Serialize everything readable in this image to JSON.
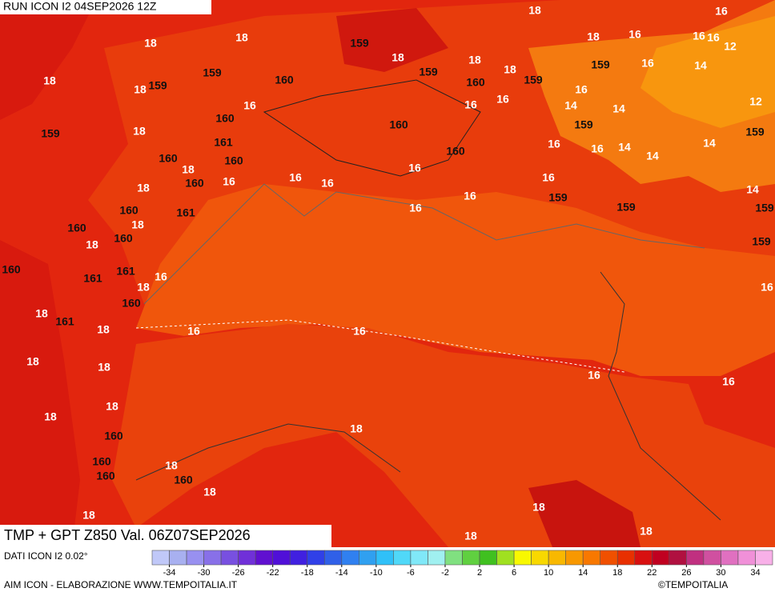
{
  "header": {
    "run": "RUN ICON I2 04SEP2026 12Z"
  },
  "map": {
    "labels": [
      "18",
      "18",
      "18",
      "18",
      "159",
      "159",
      "159",
      "18",
      "160",
      "16",
      "160",
      "161",
      "160",
      "18",
      "160",
      "160",
      "16",
      "18",
      "16",
      "16",
      "159",
      "18",
      "159",
      "18",
      "160",
      "18",
      "159",
      "16",
      "16",
      "160",
      "160",
      "16",
      "16",
      "16",
      "18",
      "18",
      "16",
      "159",
      "16",
      "16",
      "16",
      "16",
      "12",
      "14",
      "16",
      "14",
      "14",
      "12",
      "159",
      "16",
      "16",
      "14",
      "14",
      "14",
      "159",
      "16",
      "159",
      "159",
      "14",
      "159",
      "159",
      "16",
      "160",
      "161",
      "18",
      "160",
      "160",
      "18",
      "160",
      "161",
      "161",
      "16",
      "18",
      "160",
      "18",
      "161",
      "16",
      "16",
      "18",
      "18",
      "18",
      "16",
      "16",
      "18",
      "18",
      "18",
      "160",
      "160",
      "18",
      "160",
      "160",
      "18",
      "18",
      "18",
      "18",
      "18"
    ]
  },
  "footer": {
    "title": "TMP + GPT Z850 Val. 06Z07SEP2026",
    "source": "DATI ICON I2 0.02°",
    "credit": "AIM ICON - ELABORAZIONE WWW.TEMPOITALIA.IT",
    "copyright": "©TEMPOITALIA"
  },
  "colorbar": {
    "range": [
      -36,
      36
    ],
    "ticks": [
      -34,
      -30,
      -26,
      -22,
      -18,
      -14,
      -10,
      -6,
      -2,
      2,
      6,
      10,
      14,
      18,
      22,
      26,
      30,
      34
    ],
    "colors": [
      "#c0c8f8",
      "#a8b0f0",
      "#9890f0",
      "#8870e8",
      "#7850e0",
      "#7030d8",
      "#6010d0",
      "#5010d8",
      "#4020e0",
      "#3040e8",
      "#3060e8",
      "#3080f0",
      "#30a0f0",
      "#30c0f8",
      "#50d8f8",
      "#80e8f8",
      "#a0f0f0",
      "#80e080",
      "#60d040",
      "#40c020",
      "#a0e020",
      "#f8f800",
      "#f8d800",
      "#f8b800",
      "#f89800",
      "#f87800",
      "#f05000",
      "#e83000",
      "#d81010",
      "#c00020",
      "#b01040",
      "#c03080",
      "#d050a0",
      "#e070c0",
      "#f090d8",
      "#f8b0e8"
    ]
  }
}
